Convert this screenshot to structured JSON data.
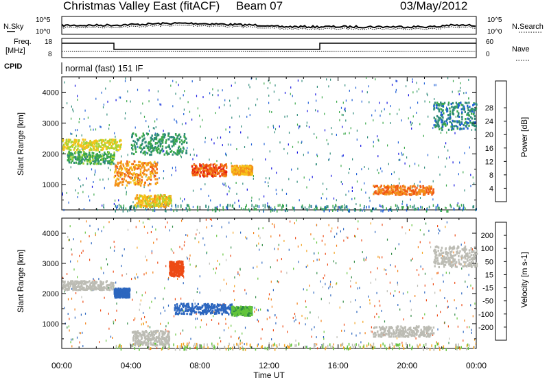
{
  "header": {
    "station": "Christmas Valley East (fitACF)",
    "beam": "Beam 07",
    "date": "03/May/2012"
  },
  "status_panels": {
    "noise": {
      "left_label": "N.Sky",
      "left_ticks": [
        "10^5",
        "10^0"
      ],
      "right_label": "N.Search",
      "right_ticks": [
        "10^5",
        "10^0"
      ]
    },
    "freq": {
      "left_label_1": "Freq.",
      "left_label_2": "[MHz]",
      "left_ticks": [
        "18",
        "8"
      ],
      "right_label": "Nave",
      "right_ticks": [
        "60",
        "0"
      ]
    },
    "cpid": {
      "label": "CPID",
      "text": "normal (fast) 151 IF"
    }
  },
  "x_axis": {
    "label": "Time UT",
    "ticks": [
      "00:00",
      "04:00",
      "08:00",
      "12:00",
      "16:00",
      "20:00",
      "00:00"
    ]
  },
  "chart_data": [
    {
      "type": "heatmap",
      "title": "",
      "ylabel": "Slant Range [km]",
      "xlabel": "",
      "xlim": [
        0,
        24
      ],
      "ylim": [
        180,
        4500
      ],
      "yticks": [
        "1000",
        "2000",
        "3000",
        "4000"
      ],
      "colorbar": {
        "label": "Power [dB]",
        "ticks": [
          "4",
          "8",
          "12",
          "16",
          "20",
          "24",
          "28"
        ],
        "colors": [
          "#1010e0",
          "#1e5fd6",
          "#2e8a7a",
          "#3aa84a",
          "#a6d432",
          "#f7c21a",
          "#f39019",
          "#f05a14",
          "#e41b0e"
        ]
      },
      "regions": [
        {
          "t0": 0.0,
          "t1": 3.4,
          "r0": 2150,
          "r1": 2500,
          "val": 18
        },
        {
          "t0": 0.3,
          "t1": 3.0,
          "r0": 1700,
          "r1": 2100,
          "val": 12
        },
        {
          "t0": 3.0,
          "t1": 5.5,
          "r0": 1000,
          "r1": 1800,
          "val": 24
        },
        {
          "t0": 4.2,
          "t1": 6.3,
          "r0": 300,
          "r1": 700,
          "val": 20
        },
        {
          "t0": 4.0,
          "t1": 7.2,
          "r0": 2000,
          "r1": 2700,
          "val": 10
        },
        {
          "t0": 7.5,
          "t1": 9.5,
          "r0": 1300,
          "r1": 1700,
          "val": 28
        },
        {
          "t0": 9.8,
          "t1": 11.0,
          "r0": 1350,
          "r1": 1650,
          "val": 22
        },
        {
          "t0": 18.0,
          "t1": 21.5,
          "r0": 700,
          "r1": 1000,
          "val": 26
        },
        {
          "t0": 21.5,
          "t1": 24.0,
          "r0": 2800,
          "r1": 3700,
          "val": 8
        }
      ]
    },
    {
      "type": "heatmap",
      "title": "",
      "ylabel": "Slant Range [km]",
      "xlabel": "Time UT",
      "xlim": [
        0,
        24
      ],
      "ylim": [
        180,
        4500
      ],
      "yticks": [
        "1000",
        "2000",
        "3000",
        "4000"
      ],
      "colorbar": {
        "label": "Velocity [m s-1]",
        "ticks": [
          "200",
          "100",
          "50",
          "15",
          "-15",
          "-50",
          "-100",
          "-200"
        ],
        "colors": [
          "#1010d6",
          "#2c66bf",
          "#2e8a43",
          "#62c43a",
          "#bcbcb4",
          "#f3a21e",
          "#f27d12",
          "#ed4a14",
          "#e0120e"
        ]
      },
      "regions": [
        {
          "t0": 0.0,
          "t1": 3.0,
          "r0": 2150,
          "r1": 2450,
          "val": 0
        },
        {
          "t0": 3.0,
          "t1": 3.9,
          "r0": 1900,
          "r1": 2200,
          "val": 180
        },
        {
          "t0": 4.0,
          "t1": 6.2,
          "r0": 300,
          "r1": 800,
          "val": 0
        },
        {
          "t0": 6.2,
          "t1": 7.0,
          "r0": 2600,
          "r1": 3100,
          "val": -180
        },
        {
          "t0": 6.5,
          "t1": 9.8,
          "r0": 1350,
          "r1": 1700,
          "val": 180
        },
        {
          "t0": 9.8,
          "t1": 11.0,
          "r0": 1300,
          "r1": 1600,
          "val": 40
        },
        {
          "t0": 18.0,
          "t1": 21.5,
          "r0": 600,
          "r1": 950,
          "val": 0
        },
        {
          "t0": 21.5,
          "t1": 24.0,
          "r0": 2900,
          "r1": 3600,
          "val": 0
        }
      ]
    }
  ]
}
